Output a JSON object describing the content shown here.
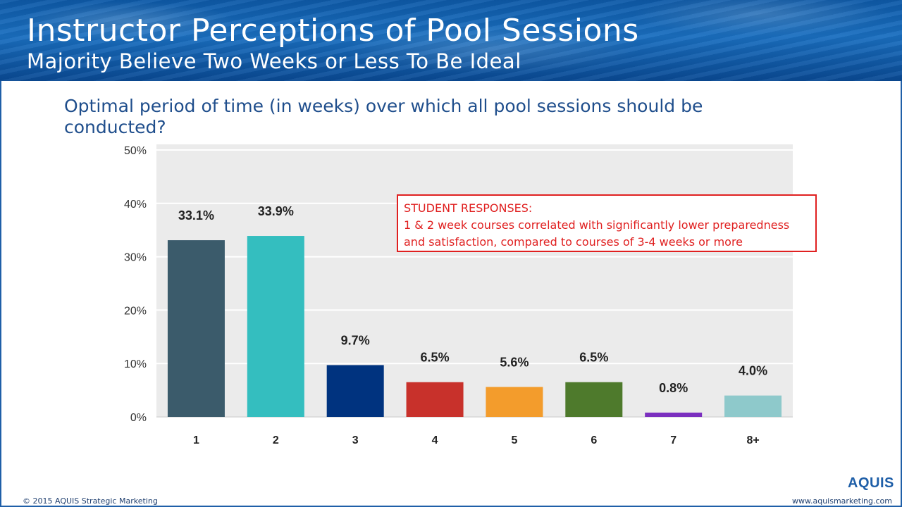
{
  "header": {
    "title": "Instructor Perceptions of Pool Sessions",
    "subtitle": "Majority Believe Two Weeks or Less To Be Ideal"
  },
  "question": "Optimal period of time (in weeks) over which all pool sessions should be conducted?",
  "callout": {
    "heading": "STUDENT RESPONSES:",
    "line1": "1 & 2 week courses correlated with significantly lower preparedness",
    "line2": "and satisfaction, compared to courses of 3-4 weeks or more"
  },
  "chart_data": {
    "type": "bar",
    "title": "Optimal period of time (in weeks) over which all pool sessions should be conducted?",
    "xlabel": "",
    "ylabel": "",
    "categories": [
      "1",
      "2",
      "3",
      "4",
      "5",
      "6",
      "7",
      "8+"
    ],
    "values": [
      33.1,
      33.9,
      9.7,
      6.5,
      5.6,
      6.5,
      0.8,
      4.0
    ],
    "data_labels": [
      "33.1%",
      "33.9%",
      "9.7%",
      "6.5%",
      "5.6%",
      "6.5%",
      "0.8%",
      "4.0%"
    ],
    "colors": [
      "#3b5b6b",
      "#34bebf",
      "#00337f",
      "#c8312b",
      "#f39c2c",
      "#4e7a2c",
      "#7b2fbf",
      "#8ec9cb"
    ],
    "ylim": [
      0,
      50
    ],
    "yticks": [
      0,
      10,
      20,
      30,
      40,
      50
    ],
    "ytick_labels": [
      "0%",
      "10%",
      "20%",
      "30%",
      "40%",
      "50%"
    ],
    "grid": true
  },
  "footer": {
    "copyright": "© 2015 AQUIS Strategic Marketing",
    "url": "www.aquismarketing.com"
  },
  "logo": {
    "text": "AQUIS"
  },
  "colors": {
    "brand_blue": "#1f5fa8",
    "question_blue": "#1f4e8c",
    "callout_red": "#e02020",
    "plot_bg": "#ebebeb"
  }
}
